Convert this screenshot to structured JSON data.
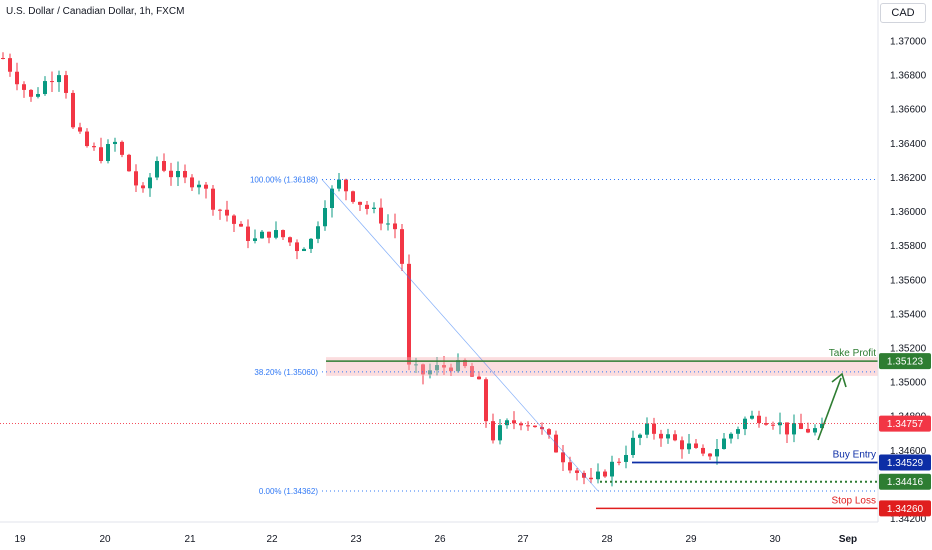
{
  "header": {
    "symbol_title": "U.S. Dollar / Canadian Dollar, 1h, FXCM",
    "currency": "CAD"
  },
  "colors": {
    "up_candle": "#089981",
    "down_candle": "#f23645",
    "fib_line": "#3179f5",
    "take_profit": "#2e7d32",
    "buy_entry": "#0d2ea6",
    "stop_loss": "#e01e1e",
    "current_price": "#f23645",
    "support_band": "#f7b4b8"
  },
  "chart_data": {
    "type": "candlestick",
    "symbol": "USDCAD",
    "timeframe": "1h",
    "ylim": [
      1.3418,
      1.3724
    ],
    "y_ticks": [
      "1.37000",
      "1.36800",
      "1.36600",
      "1.36400",
      "1.36200",
      "1.36000",
      "1.35800",
      "1.35600",
      "1.35400",
      "1.35200",
      "1.35000",
      "1.34800",
      "1.34600",
      "1.34400",
      "1.34200"
    ],
    "x_ticks": [
      "19",
      "20",
      "21",
      "22",
      "23",
      "26",
      "27",
      "28",
      "29",
      "30",
      "Sep"
    ],
    "close_path": [
      [
        0,
        1.369
      ],
      [
        2,
        1.3678
      ],
      [
        4,
        1.3666
      ],
      [
        6,
        1.3676
      ],
      [
        8,
        1.3683
      ],
      [
        9,
        1.3672
      ],
      [
        10,
        1.3648
      ],
      [
        12,
        1.3638
      ],
      [
        14,
        1.3633
      ],
      [
        16,
        1.364
      ],
      [
        17,
        1.3632
      ],
      [
        19,
        1.3616
      ],
      [
        20,
        1.361
      ],
      [
        22,
        1.363
      ],
      [
        24,
        1.3622
      ],
      [
        26,
        1.3618
      ],
      [
        28,
        1.3618
      ],
      [
        30,
        1.3605
      ],
      [
        32,
        1.3598
      ],
      [
        34,
        1.3588
      ],
      [
        36,
        1.3583
      ],
      [
        38,
        1.3588
      ],
      [
        40,
        1.3585
      ],
      [
        42,
        1.3579
      ],
      [
        44,
        1.3583
      ],
      [
        46,
        1.3606
      ],
      [
        48,
        1.3617
      ],
      [
        50,
        1.3609
      ],
      [
        52,
        1.3602
      ],
      [
        54,
        1.3596
      ],
      [
        56,
        1.359
      ],
      [
        57,
        1.357
      ],
      [
        57.3,
        1.3532
      ],
      [
        58,
        1.3508
      ],
      [
        60,
        1.3505
      ],
      [
        62,
        1.3508
      ],
      [
        64,
        1.351
      ],
      [
        66,
        1.3508
      ],
      [
        68,
        1.3498
      ],
      [
        69,
        1.3478
      ],
      [
        70,
        1.3468
      ],
      [
        72,
        1.3475
      ],
      [
        74,
        1.3478
      ],
      [
        76,
        1.3475
      ],
      [
        78,
        1.3466
      ],
      [
        80,
        1.3456
      ],
      [
        82,
        1.3448
      ],
      [
        84,
        1.344
      ],
      [
        86,
        1.3448
      ],
      [
        88,
        1.3455
      ],
      [
        90,
        1.3465
      ],
      [
        92,
        1.3472
      ],
      [
        94,
        1.347
      ],
      [
        96,
        1.3465
      ],
      [
        98,
        1.3462
      ],
      [
        100,
        1.3455
      ],
      [
        102,
        1.3462
      ],
      [
        104,
        1.347
      ],
      [
        106,
        1.3478
      ],
      [
        108,
        1.348
      ],
      [
        110,
        1.3478
      ],
      [
        112,
        1.3472
      ]
    ],
    "fibonacci": [
      {
        "label": "100.00% (1.36188)",
        "price": 1.36188
      },
      {
        "label": "38.20% (1.35060)",
        "price": 1.3506
      },
      {
        "label": "0.00% (1.34362)",
        "price": 1.34362
      }
    ],
    "support_zone": {
      "low": 1.3506,
      "high": 1.35123
    },
    "levels": [
      {
        "name": "Take Profit",
        "price": 1.35123,
        "tag": "1.35123",
        "kind": "take_profit"
      },
      {
        "name": "Buy Entry",
        "price": 1.34529,
        "tag": "1.34529",
        "kind": "buy_entry"
      },
      {
        "name": "",
        "price": 1.34416,
        "tag": "1.34416",
        "kind": "swing_low"
      },
      {
        "name": "Stop Loss",
        "price": 1.3426,
        "tag": "1.34260",
        "kind": "stop_loss"
      }
    ],
    "current_price": {
      "price": 1.34757,
      "tag": "1.34757"
    }
  }
}
